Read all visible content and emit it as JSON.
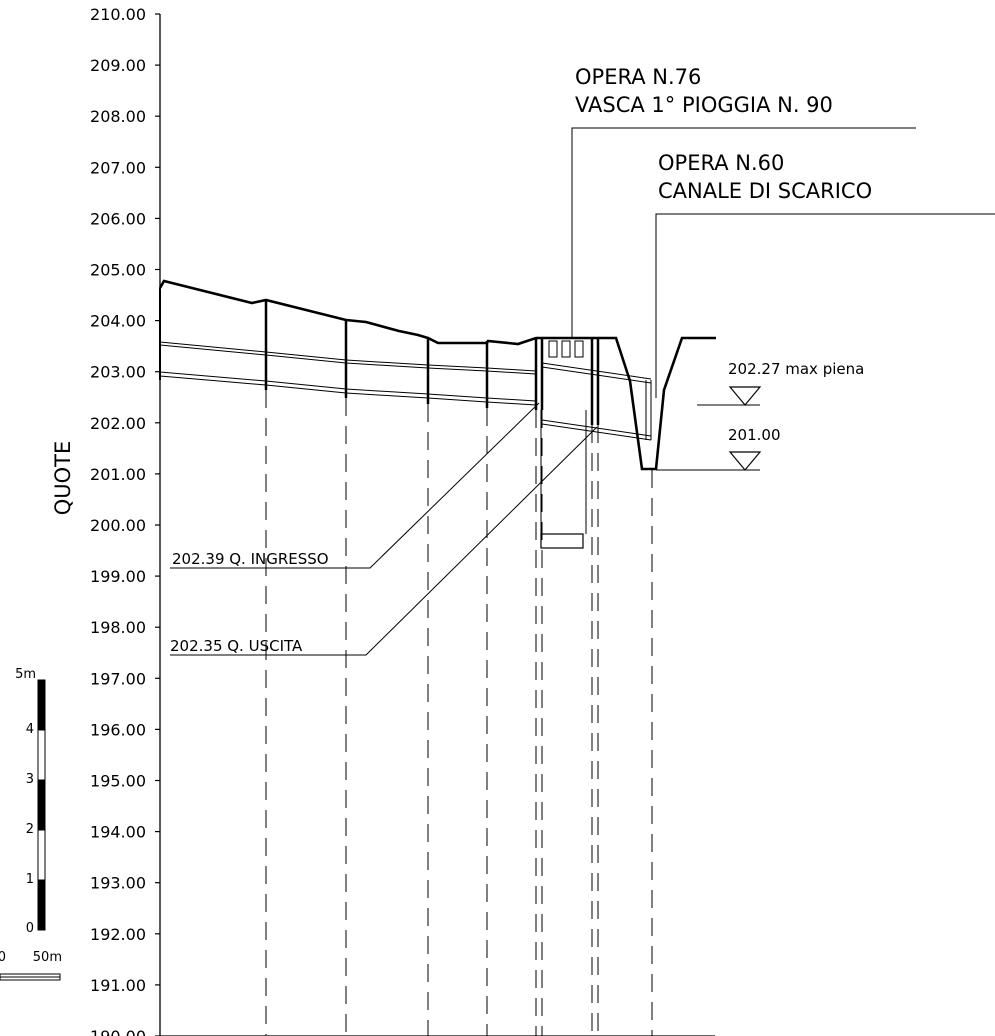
{
  "axis": {
    "title": "QUOTE",
    "ticks": [
      "210.00",
      "209.00",
      "208.00",
      "207.00",
      "206.00",
      "205.00",
      "204.00",
      "203.00",
      "202.00",
      "201.00",
      "200.00",
      "199.00",
      "198.00",
      "197.00",
      "196.00",
      "195.00",
      "194.00",
      "193.00",
      "192.00",
      "191.00",
      "190.00"
    ],
    "min": 190,
    "max": 210
  },
  "callouts": {
    "opera76_line1": "OPERA N.76",
    "opera76_line2": "VASCA 1° PIOGGIA N. 90",
    "opera60_line1": "OPERA N.60",
    "opera60_line2": "CANALE DI SCARICO",
    "ingresso": "202.39 Q. INGRESSO",
    "uscita": "202.35 Q. USCITA"
  },
  "water_levels": {
    "max_piena": "202.27 max piena",
    "bottom": "201.00"
  },
  "scale_bar": {
    "vertical_labels": [
      "5m",
      "4",
      "3",
      "2",
      "1",
      "0"
    ],
    "horizontal_labels": [
      "0",
      "50m"
    ]
  }
}
